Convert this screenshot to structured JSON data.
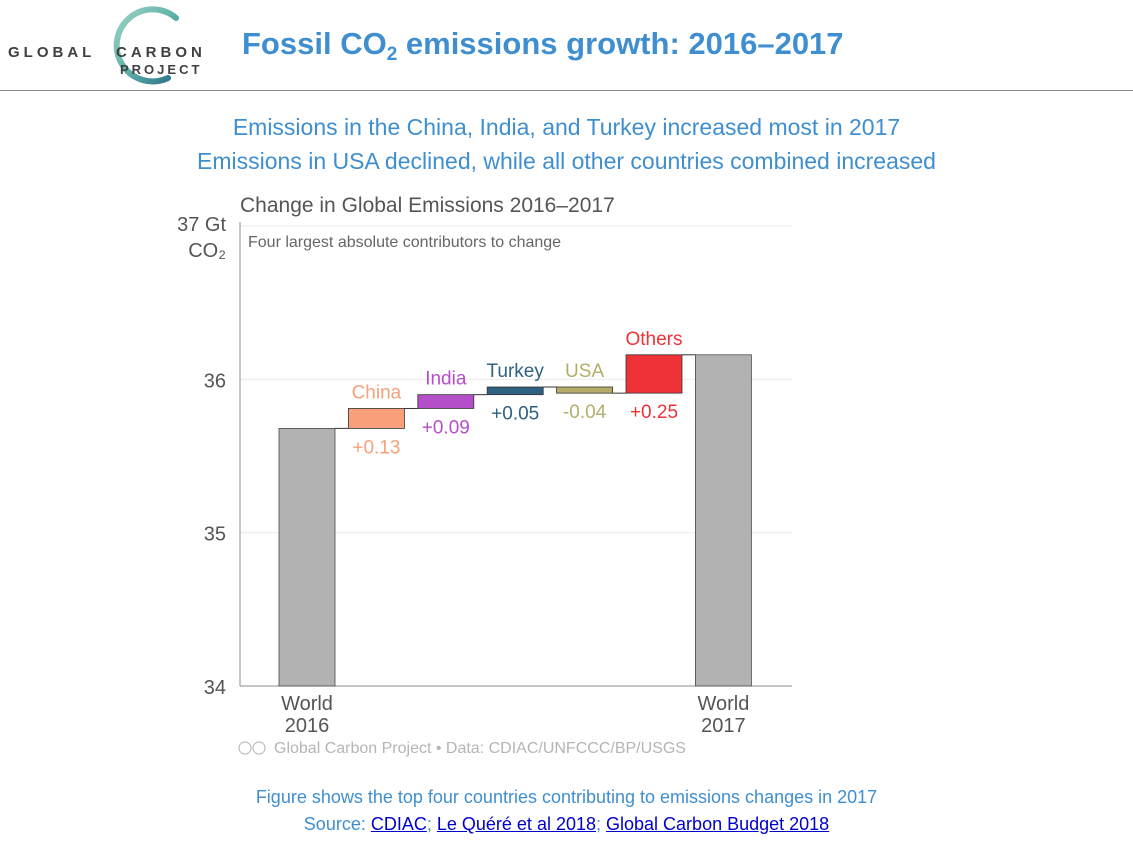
{
  "header": {
    "logo": {
      "line1_a": "GLOBAL",
      "line1_b": "CARBON",
      "line2": "PROJECT"
    },
    "title_pre": "Fossil CO",
    "title_sub": "2",
    "title_post": " emissions growth: 2016–2017"
  },
  "headline": {
    "line1": "Emissions in the China, India, and Turkey increased most in 2017",
    "line2": "Emissions in USA declined, while all other countries combined increased"
  },
  "chart_data": {
    "type": "bar",
    "subtype": "waterfall",
    "title": "Change in Global Emissions 2016–2017",
    "subtitle": "Four largest absolute contributors to change",
    "ylabel_line1": "37 Gt",
    "ylabel_line2": "CO₂",
    "ylim": [
      34,
      37
    ],
    "yticks": [
      34,
      35,
      36
    ],
    "start": {
      "label_top": "World",
      "label_bottom": "2016",
      "value": 35.68
    },
    "steps": [
      {
        "name": "China",
        "delta": 0.13,
        "delta_label": "+0.13",
        "color": "#f9a07b"
      },
      {
        "name": "India",
        "delta": 0.09,
        "delta_label": "+0.09",
        "color": "#b54fc9"
      },
      {
        "name": "Turkey",
        "delta": 0.05,
        "delta_label": "+0.05",
        "color": "#2e6182"
      },
      {
        "name": "USA",
        "delta": -0.04,
        "delta_label": "-0.04",
        "color": "#b5ad6a"
      },
      {
        "name": "Others",
        "delta": 0.25,
        "delta_label": "+0.25",
        "color": "#ee3338"
      }
    ],
    "end": {
      "label_top": "World",
      "label_bottom": "2017",
      "value": 36.16
    },
    "total_color": "#b2b2b2",
    "footer": "Global Carbon Project  •  Data: CDIAC/UNFCCC/BP/USGS"
  },
  "caption": {
    "line1": "Figure shows the top four countries contributing to emissions changes in 2017",
    "source_prefix": "Source: ",
    "links": [
      "CDIAC",
      "Le Quéré et al 2018",
      "Global Carbon Budget 2018"
    ],
    "separator": "; "
  }
}
